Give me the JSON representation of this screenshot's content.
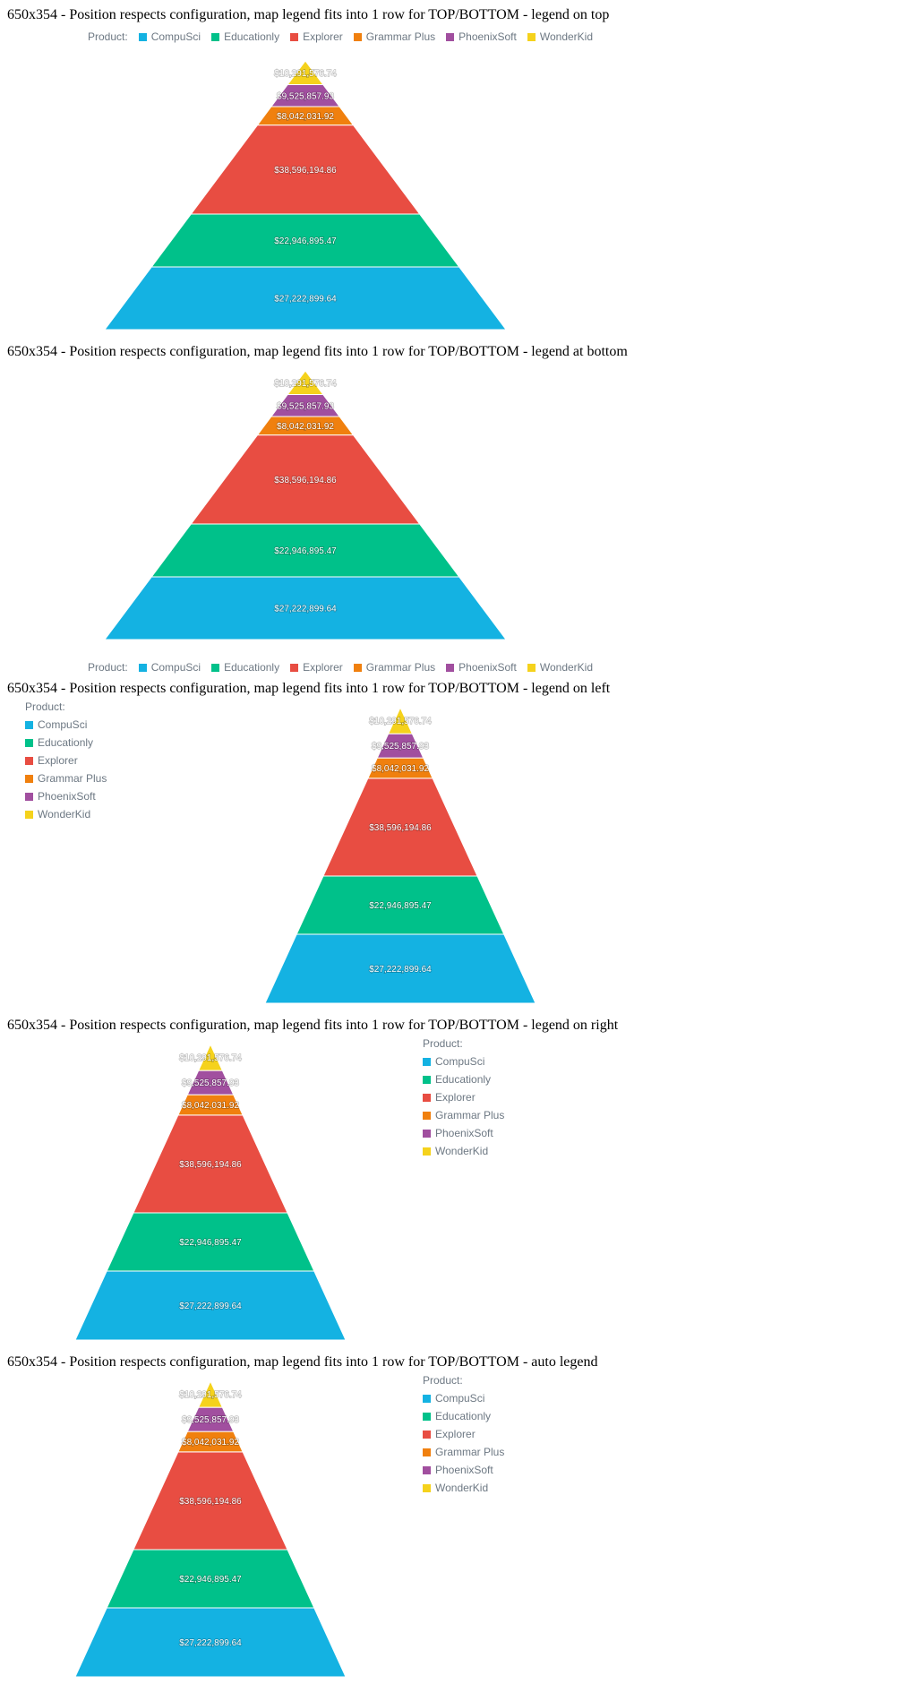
{
  "sections": [
    {
      "title": "650x354 - Position respects configuration, map legend fits into 1 row for TOP/BOTTOM - legend on top"
    },
    {
      "title": "650x354 - Position respects configuration, map legend fits into 1 row for TOP/BOTTOM - legend at bottom"
    },
    {
      "title": "650x354 - Position respects configuration, map legend fits into 1 row for TOP/BOTTOM - legend on left"
    },
    {
      "title": "650x354 - Position respects configuration, map legend fits into 1 row for TOP/BOTTOM - legend on right"
    },
    {
      "title": "650x354 - Position respects configuration, map legend fits into 1 row for TOP/BOTTOM - auto legend"
    }
  ],
  "legend": {
    "title": "Product:",
    "items": [
      {
        "name": "CompuSci",
        "color": "#14b2e2"
      },
      {
        "name": "Educationly",
        "color": "#00c18a"
      },
      {
        "name": "Explorer",
        "color": "#e84d42"
      },
      {
        "name": "Grammar Plus",
        "color": "#f0800e"
      },
      {
        "name": "PhoenixSoft",
        "color": "#a14f9f"
      },
      {
        "name": "WonderKid",
        "color": "#f5d21c"
      }
    ]
  },
  "chart_data": {
    "type": "pyramid",
    "categories": [
      "CompuSci",
      "Educationly",
      "Explorer",
      "Grammar Plus",
      "PhoenixSoft",
      "WonderKid"
    ],
    "values": [
      27222899.64,
      22946895.47,
      38596194.86,
      8042031.92,
      9525857.93,
      10291576.74
    ],
    "labels": [
      "$27,222,899.64",
      "$22,946,895.47",
      "$38,596,194.86",
      "$8,042,031.92",
      "$9,525,857.93",
      "$10,291,576.74"
    ],
    "colors": [
      "#14b2e2",
      "#00c18a",
      "#e84d42",
      "#f0800e",
      "#a14f9f",
      "#f5d21c"
    ],
    "legend_positions": [
      "top",
      "bottom",
      "left",
      "right",
      "auto"
    ]
  }
}
